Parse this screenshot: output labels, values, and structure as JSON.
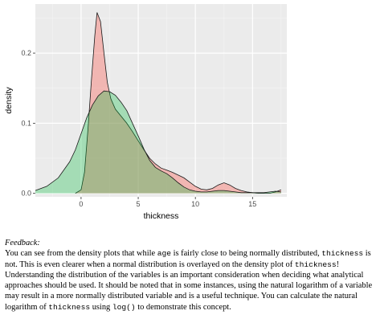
{
  "chart_data": {
    "type": "area",
    "title": "",
    "xlabel": "thickness",
    "ylabel": "density",
    "xlim": [
      -4,
      18
    ],
    "ylim": [
      -0.005,
      0.27
    ],
    "x_ticks": [
      0,
      5,
      10,
      15
    ],
    "y_ticks": [
      0.0,
      0.1,
      0.2
    ],
    "y_tick_labels": [
      "0.0",
      "0.1",
      "0.2"
    ],
    "grid": true,
    "legend": "none",
    "background": "#ebebeb",
    "series": [
      {
        "color": "#f8766d",
        "fill": "rgba(248,118,109,0.45)",
        "x": [
          -0.5,
          0,
          0.3,
          0.6,
          0.9,
          1.2,
          1.4,
          1.7,
          2.0,
          2.3,
          2.6,
          3.0,
          3.5,
          4.0,
          4.5,
          5.0,
          5.5,
          6.0,
          6.5,
          7.0,
          7.5,
          8.0,
          8.5,
          9.0,
          9.5,
          10.0,
          10.5,
          11.0,
          11.5,
          12.0,
          12.5,
          13.0,
          13.5,
          14.0,
          14.5,
          15.0,
          15.5,
          16.0,
          16.5,
          17.0,
          17.5
        ],
        "y": [
          0.0,
          0.005,
          0.03,
          0.09,
          0.16,
          0.225,
          0.258,
          0.245,
          0.2,
          0.158,
          0.135,
          0.12,
          0.11,
          0.1,
          0.088,
          0.075,
          0.062,
          0.05,
          0.042,
          0.036,
          0.033,
          0.03,
          0.026,
          0.022,
          0.016,
          0.01,
          0.006,
          0.005,
          0.007,
          0.012,
          0.015,
          0.012,
          0.007,
          0.004,
          0.002,
          0.001,
          0.0,
          0.0,
          0.0,
          0.002,
          0.005
        ]
      },
      {
        "color": "#00ba38",
        "fill": "rgba(0,186,56,0.3)",
        "x": [
          -4.0,
          -3.0,
          -2.0,
          -1.0,
          -0.5,
          0.0,
          0.5,
          1.0,
          1.5,
          2.0,
          2.5,
          3.0,
          3.5,
          4.0,
          4.5,
          5.0,
          5.5,
          6.0,
          6.5,
          7.0,
          7.5,
          8.0,
          8.5,
          9.0,
          9.5,
          10.0,
          10.5,
          11.0,
          11.5,
          12.0,
          12.5,
          13.0,
          13.5,
          14.0,
          14.5,
          15.0,
          15.5,
          16.0,
          16.5,
          17.0,
          17.5
        ],
        "y": [
          0.004,
          0.01,
          0.022,
          0.045,
          0.062,
          0.085,
          0.108,
          0.126,
          0.139,
          0.146,
          0.145,
          0.14,
          0.13,
          0.118,
          0.1,
          0.082,
          0.063,
          0.047,
          0.037,
          0.032,
          0.028,
          0.022,
          0.015,
          0.009,
          0.005,
          0.003,
          0.002,
          0.002,
          0.003,
          0.004,
          0.004,
          0.003,
          0.002,
          0.001,
          0.001,
          0.001,
          0.001,
          0.001,
          0.002,
          0.003,
          0.002
        ]
      }
    ]
  },
  "feedback": {
    "heading": "Feedback:",
    "parts": [
      "You can see from the density plots that while ",
      "age",
      " is fairly close to being normally distributed, ",
      "thickness",
      " is not. This is even clearer when a normal distribution is overlayed on the density plot of ",
      "thickness",
      "! Understanding the distribution of the variables is an important consideration when deciding what analytical approaches should be used. It should be noted that in some instances, using the natural logarithm of a variable may result in a more normally distributed variable and is a useful technique. You can calculate the natural logarithm of ",
      "thickness",
      " using ",
      "log()",
      " to demonstrate this concept."
    ]
  }
}
